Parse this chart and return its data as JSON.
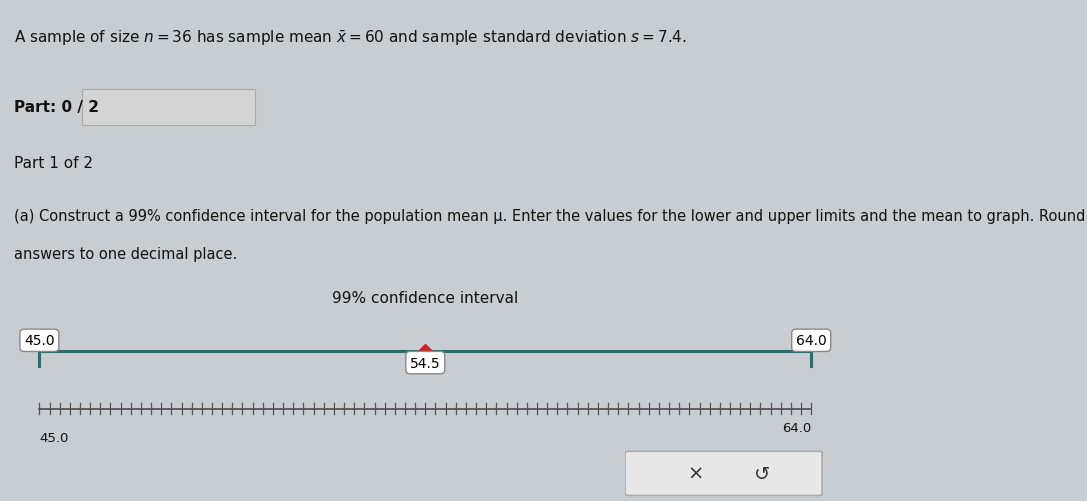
{
  "part_label": "Part: 0 / 2",
  "part1_label": "Part 1 of 2",
  "ci_title": "99% confidence interval",
  "lower": 45.0,
  "upper": 64.0,
  "mean": 54.5,
  "axis_min": 45.0,
  "axis_max": 64.0,
  "page_bg": "#c8cdd1",
  "white_bg": "#ffffff",
  "band_bg": "#b8bec4",
  "ci_box_bg": "#cdd2d7",
  "ci_line_color": "#2e6b6b",
  "mean_marker_color": "#cc2222",
  "tick_color": "#555555",
  "text_color": "#111111",
  "progress_bar_color": "#d4d4d4",
  "bottom_buttons_bg": "#e8e8e8",
  "bottom_buttons_edge": "#aaaaaa"
}
